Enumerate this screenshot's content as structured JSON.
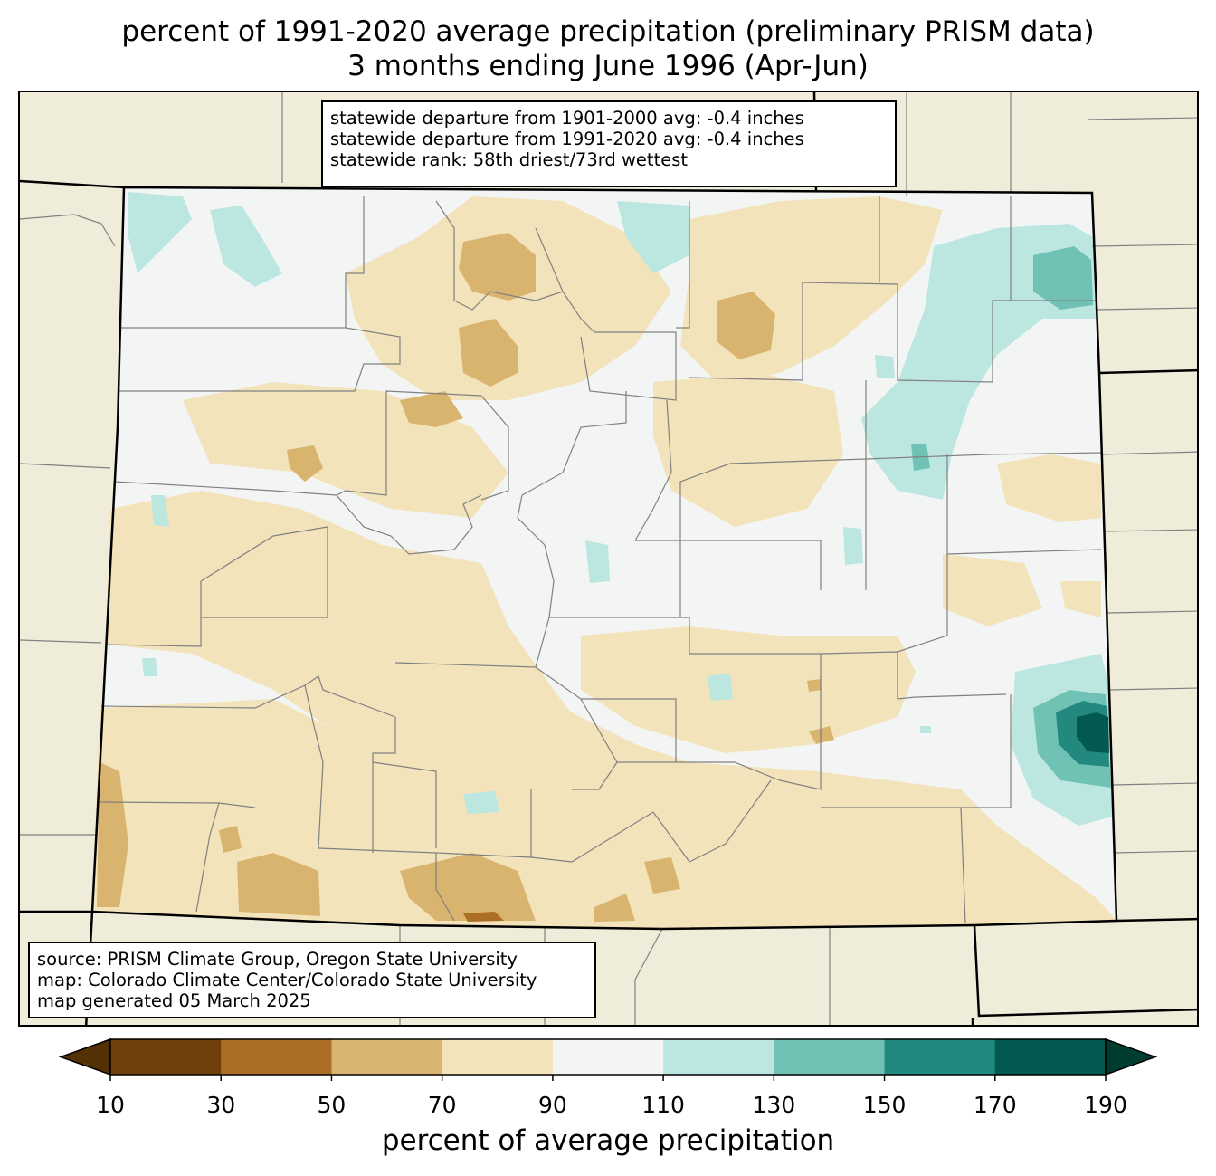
{
  "title": {
    "line1": "percent of 1991-2020 average precipitation (preliminary PRISM data)",
    "line2": "3 months ending June 1996 (Apr-Jun)"
  },
  "stats": {
    "line1": "statewide departure from 1901-2000 avg: -0.4 inches",
    "line2": "statewide departure from 1991-2020 avg: -0.4 inches",
    "line3": "statewide rank: 58th driest/73rd wettest"
  },
  "source": {
    "line1": "source: PRISM Climate Group, Oregon State University",
    "line2": "map: Colorado Climate Center/Colorado State University",
    "line3": "map generated 05 March 2025"
  },
  "colorbar": {
    "label": "percent of average precipitation",
    "ticks": [
      "10",
      "30",
      "50",
      "70",
      "90",
      "110",
      "130",
      "150",
      "170",
      "190"
    ],
    "under_color": "#543005",
    "over_color": "#003c30",
    "bin_colors": [
      "#70400b",
      "#aa6e24",
      "#d8b46e",
      "#f3e3ba",
      "#f3f5f4",
      "#bce6e0",
      "#70c2b5",
      "#23897e",
      "#01594f"
    ]
  },
  "map_colors": {
    "background": "#efedda",
    "border": "#000000",
    "county_lines": "#808080"
  }
}
